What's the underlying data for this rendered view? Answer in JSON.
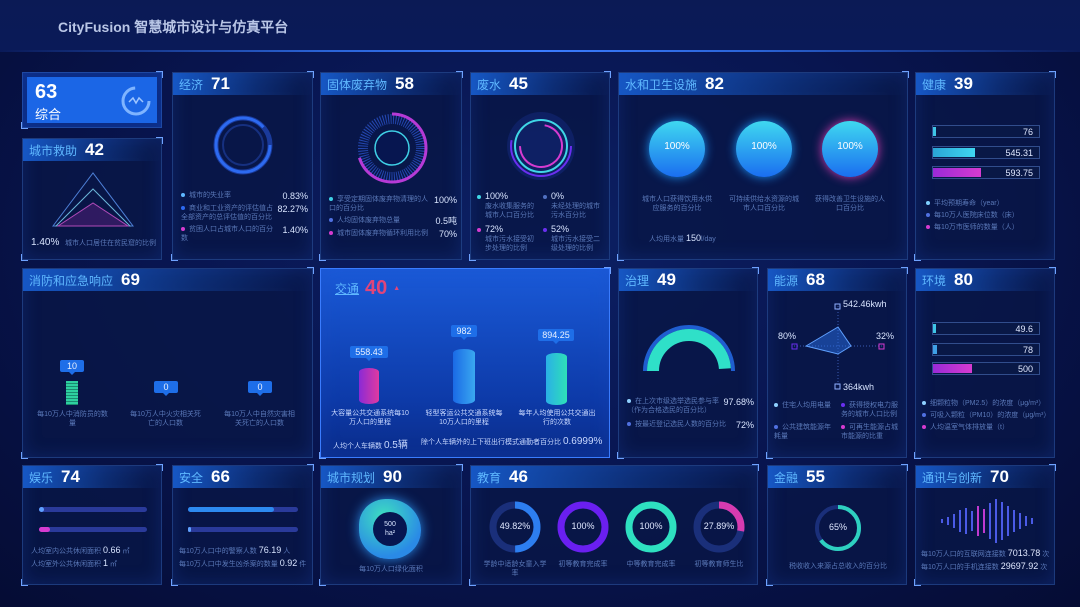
{
  "app": {
    "title": "CityFusion 智慧城市设计与仿真平台"
  },
  "colors": {
    "accent": "#1e6ee8",
    "cyan": "#2fd3e0",
    "magenta": "#d63bd0",
    "purple": "#7a2cf0",
    "teal": "#2ee0b8"
  },
  "overall": {
    "score": "63",
    "label": "综合",
    "icon": "network-gauge-icon"
  },
  "rescue": {
    "title": "城市救助",
    "score": "42",
    "value": "1.40%",
    "label": "城市人口居住在贫民窟的比例"
  },
  "economy": {
    "title": "经济",
    "score": "71",
    "items": [
      {
        "label": "城市的失业率",
        "value": "0.83%"
      },
      {
        "label": "商业和工业资产的评估值占全部资产的总评估值的百分比",
        "value": "82.27%"
      },
      {
        "label": "贫困人口占城市人口的百分数",
        "value": "1.40%"
      }
    ]
  },
  "solid": {
    "title": "固体废弃物",
    "score": "58",
    "items": [
      {
        "label": "享受定期固体废弃物清理的人口的百分比",
        "value": "100%"
      },
      {
        "label": "人均固体废弃物总量",
        "value": "0.5吨"
      },
      {
        "label": "城市固体废弃物循环利用比例",
        "value": "70%"
      }
    ]
  },
  "wastewater": {
    "title": "废水",
    "score": "45",
    "items": [
      {
        "value": "100%",
        "label": "废水收集服务的城市人口百分比"
      },
      {
        "value": "0%",
        "label": "未经处理的城市污水百分比"
      },
      {
        "value": "72%",
        "label": "城市污水接受初步处理的比例"
      },
      {
        "value": "52%",
        "label": "城市污水接受二级处理的比例"
      }
    ]
  },
  "water": {
    "title": "水和卫生设施",
    "score": "82",
    "items": [
      {
        "value": "100%",
        "label": "城市人口获得饮用水供应服务的百分比"
      },
      {
        "value": "100%",
        "label": "可持续供给水资源的城市人口百分比"
      },
      {
        "value": "100%",
        "label": "获得改善卫生设施的人口百分比"
      }
    ],
    "usage_label": "人均用水量",
    "usage_value": "150",
    "usage_unit": "l/day"
  },
  "health": {
    "title": "健康",
    "score": "39",
    "bars": [
      {
        "value": "76",
        "fill": 0.02
      },
      {
        "value": "545.31",
        "fill": 0.4
      },
      {
        "value": "593.75",
        "fill": 0.45
      }
    ],
    "legend": [
      "平均预期寿命（year）",
      "每10万人医院床位数（床）",
      "每10万市医师的数量（人）"
    ]
  },
  "fire": {
    "title": "消防和应急响应",
    "score": "69",
    "items": [
      {
        "value": "10",
        "label": "每10万人中消防员的数量"
      },
      {
        "value": "0",
        "label": "每10万人中火灾相关死亡的人口数"
      },
      {
        "value": "0",
        "label": "每10万人中自然灾害相关死亡的人口数"
      }
    ]
  },
  "traffic": {
    "title": "交通",
    "score": "40",
    "trend_icon": "up-arrow-icon",
    "items": [
      {
        "value": "558.43",
        "label": "大容量公共交通系统每10万人口的里程"
      },
      {
        "value": "982",
        "label": "轻型客运公共交通系统每10万人口的里程"
      },
      {
        "value": "894.25",
        "label": "每年人均使用公共交通出行的次数"
      }
    ],
    "car_label": "人均个人车辆数",
    "car_value": "0.5辆",
    "commute_label": "除个人车辆外的上下班出行模式通勤者百分比",
    "commute_value": "0.6999%"
  },
  "governance": {
    "title": "治理",
    "score": "49",
    "gauge": 0.9768,
    "items": [
      {
        "label": "在上次市级选举选民参与率（作为合格选民的百分比）",
        "value": "97.68%"
      },
      {
        "label": "按最近登记选民人数的百分比",
        "value": "72%"
      }
    ]
  },
  "energy": {
    "title": "能源",
    "score": "68",
    "radar": {
      "top": "542.46kwh",
      "left": "80%",
      "right": "32%",
      "bottom": "364kwh"
    },
    "legend": [
      "住宅人均用电量",
      "获得授权电力服务的城市人口比例",
      "公共建筑能源年耗量",
      "可再生能源占城市能源的比重"
    ]
  },
  "environment": {
    "title": "环境",
    "score": "80",
    "bars": [
      {
        "value": "49.6",
        "fill": 0.02
      },
      {
        "value": "78",
        "fill": 0.04
      },
      {
        "value": "500",
        "fill": 0.37
      }
    ],
    "legend": [
      "细颗粒物（PM2.5）的浓度（μg/m³）",
      "可吸入颗粒（PM10）的浓度（μg/m³）",
      "人均温室气体排放量（t）"
    ]
  },
  "recreation": {
    "title": "娱乐",
    "score": "74",
    "fills": [
      0.05,
      0.1
    ],
    "rows": [
      {
        "label": "人均室内公共休闲面积",
        "value": "0.66",
        "unit": "㎡"
      },
      {
        "label": "人均室外公共休闲面积",
        "value": "1",
        "unit": "㎡"
      }
    ]
  },
  "safety": {
    "title": "安全",
    "score": "66",
    "fills": [
      0.78,
      0.02
    ],
    "rows": [
      {
        "label": "每10万人口中的警察人数",
        "value": "76.19",
        "unit": "人"
      },
      {
        "label": "每10万人口中发生凶杀案的数量",
        "value": "0.92",
        "unit": "件"
      }
    ]
  },
  "planning": {
    "title": "城市规划",
    "score": "90",
    "value": "500",
    "unit": "ha²",
    "label": "每10万人口绿化面积"
  },
  "education": {
    "title": "教育",
    "score": "46",
    "items": [
      {
        "value": "49.82%",
        "pct": 0.4982,
        "color": "#2d7ef0",
        "label": "学龄中适龄女童入学率"
      },
      {
        "value": "100%",
        "pct": 1,
        "color": "#6a1ff0",
        "label": "初等教育完成率"
      },
      {
        "value": "100%",
        "pct": 1,
        "color": "#2ee0c0",
        "label": "中等教育完成率"
      },
      {
        "value": "27.89%",
        "pct": 0.2789,
        "color": "#d63bb0",
        "label": "初等教育师生比"
      }
    ]
  },
  "finance": {
    "title": "金融",
    "score": "55",
    "value": "65%",
    "pct": 0.65,
    "label": "税收收入来源占总收入的百分比"
  },
  "telecom": {
    "title": "通讯与创新",
    "score": "70",
    "rows": [
      {
        "label": "每10万人口的互联网连接数",
        "value": "7013.78",
        "unit": "次"
      },
      {
        "label": "每10万人口的手机连接数",
        "value": "29697.92",
        "unit": "次"
      }
    ]
  }
}
